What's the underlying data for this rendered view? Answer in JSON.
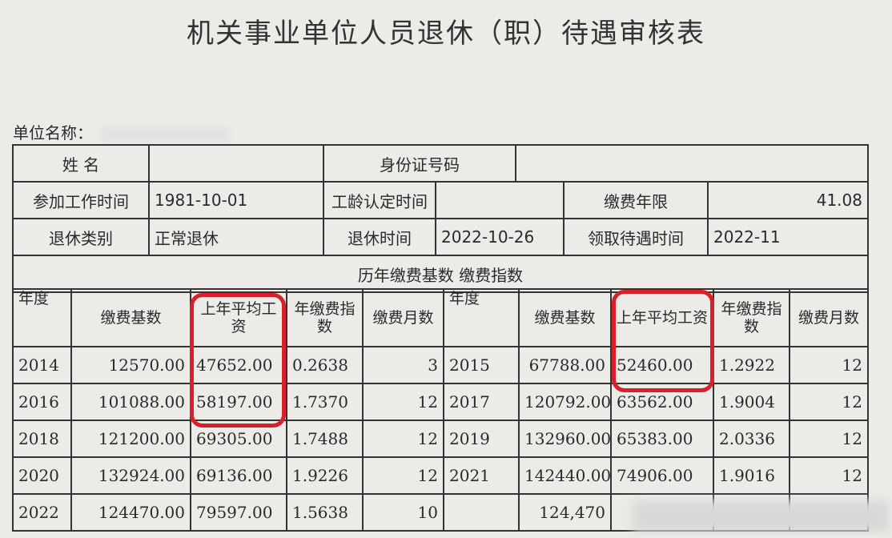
{
  "title": "机关事业单位人员退休（职）待遇审核表",
  "unit_label": "单位名称：",
  "info": {
    "name_label": "姓  名",
    "id_label": "身份证号码",
    "work_start_label": "参加工作时间",
    "work_start": "1981-10-01",
    "seniority_label": "工龄认定时间",
    "pay_years_label": "缴费年限",
    "pay_years": "41.08",
    "retire_type_label": "退休类别",
    "retire_type": "正常退休",
    "retire_time_label": "退休时间",
    "retire_time": "2022-10-26",
    "benefit_time_label": "领取待遇时间",
    "benefit_time": "2022-11"
  },
  "section_title": "历年缴费基数   缴费指数",
  "headers": [
    "年度",
    "缴费基数",
    "上年平均工资",
    "年缴费指数",
    "缴费月数",
    "年度",
    "缴费基数",
    "上年平均工资",
    "年缴费指数",
    "缴费月数"
  ],
  "rows": [
    [
      "2014",
      "12570.00",
      "47652.00",
      "0.2638",
      "3",
      "2015",
      "67788.00",
      "52460.00",
      "1.2922",
      "12"
    ],
    [
      "2016",
      "101088.00",
      "58197.00",
      "1.7370",
      "12",
      "2017",
      "120792.00",
      "63562.00",
      "1.9004",
      "12"
    ],
    [
      "2018",
      "121200.00",
      "69305.00",
      "1.7488",
      "12",
      "2019",
      "132960.00",
      "65383.00",
      "2.0336",
      "12"
    ],
    [
      "2020",
      "132924.00",
      "69136.00",
      "1.9226",
      "12",
      "2021",
      "142440.00",
      "74906.00",
      "1.9016",
      "12"
    ],
    [
      "2022",
      "124470.00",
      "79597.00",
      "1.5638",
      "10",
      "",
      "124,470",
      "",
      "",
      ""
    ]
  ],
  "highlight_color": "#d7202a"
}
